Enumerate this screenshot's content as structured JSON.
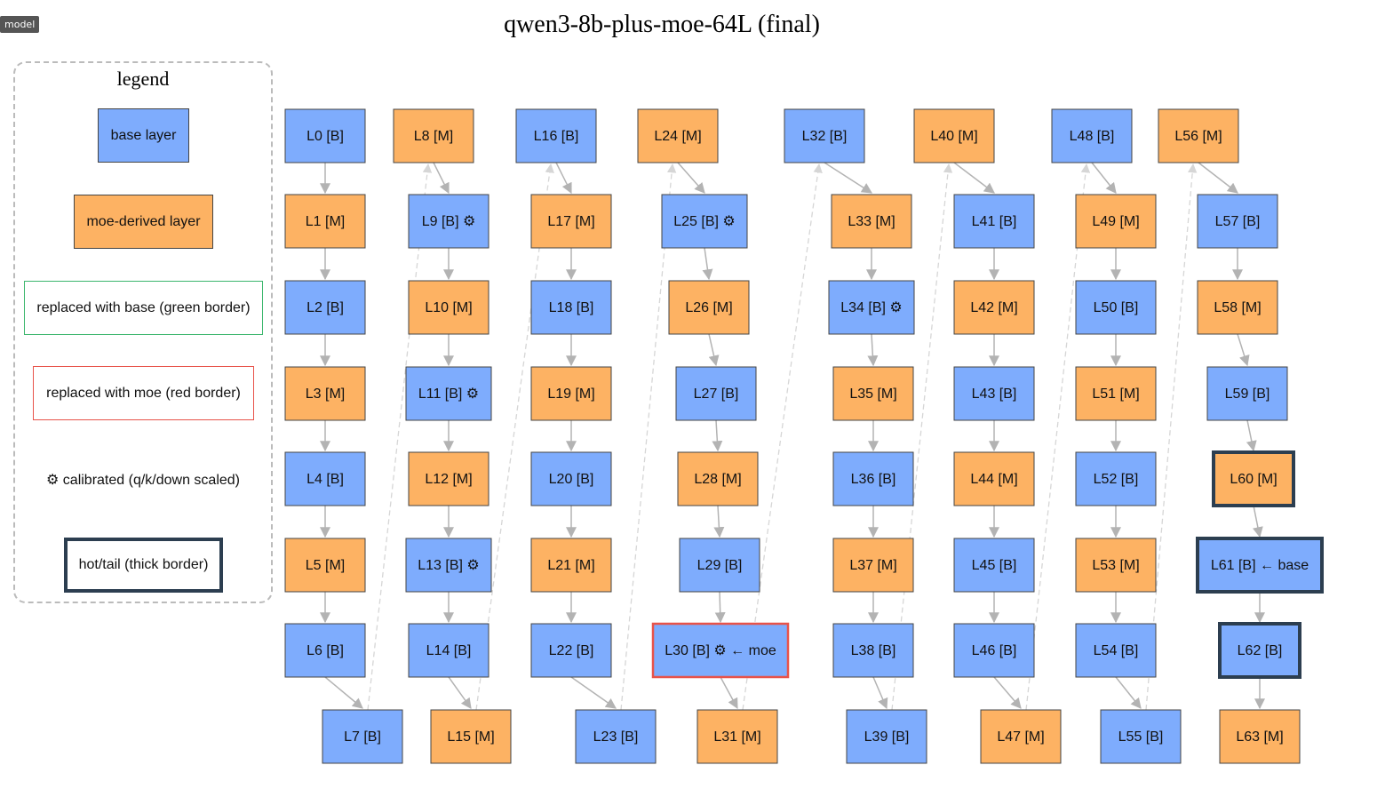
{
  "tag": "model",
  "title": "qwen3-8b-plus-moe-64L (final)",
  "legend": {
    "title": "legend",
    "items": [
      {
        "label": "base layer",
        "kind": "base"
      },
      {
        "label": "moe-derived layer",
        "kind": "moe"
      },
      {
        "label": "replaced with base (green border)",
        "kind": "green"
      },
      {
        "label": "replaced with moe (red border)",
        "kind": "red"
      },
      {
        "label": "⚙ calibrated (q/k/down scaled)",
        "kind": "calib"
      },
      {
        "label": "hot/tail (thick border)",
        "kind": "thick"
      }
    ]
  },
  "colors": {
    "base": "#7eacfd",
    "moe": "#fdb263",
    "node_border": "#444444",
    "green": "#3cb66d",
    "red": "#e8534a",
    "thick": "#2c3e50",
    "edge": "#b3b3b3",
    "edge_dashed": "#d6d6d6"
  },
  "layers": [
    {
      "id": 0,
      "label": "L0 [B]",
      "type": "base"
    },
    {
      "id": 1,
      "label": "L1 [M]",
      "type": "moe"
    },
    {
      "id": 2,
      "label": "L2 [B]",
      "type": "base"
    },
    {
      "id": 3,
      "label": "L3 [M]",
      "type": "moe"
    },
    {
      "id": 4,
      "label": "L4 [B]",
      "type": "base"
    },
    {
      "id": 5,
      "label": "L5 [M]",
      "type": "moe"
    },
    {
      "id": 6,
      "label": "L6 [B]",
      "type": "base"
    },
    {
      "id": 7,
      "label": "L7 [B]",
      "type": "base"
    },
    {
      "id": 8,
      "label": "L8 [M]",
      "type": "moe"
    },
    {
      "id": 9,
      "label": "L9 [B] ⚙",
      "type": "base",
      "calibrated": true
    },
    {
      "id": 10,
      "label": "L10 [M]",
      "type": "moe"
    },
    {
      "id": 11,
      "label": "L11 [B] ⚙",
      "type": "base",
      "calibrated": true
    },
    {
      "id": 12,
      "label": "L12 [M]",
      "type": "moe"
    },
    {
      "id": 13,
      "label": "L13 [B] ⚙",
      "type": "base",
      "calibrated": true
    },
    {
      "id": 14,
      "label": "L14 [B]",
      "type": "base"
    },
    {
      "id": 15,
      "label": "L15 [M]",
      "type": "moe"
    },
    {
      "id": 16,
      "label": "L16 [B]",
      "type": "base"
    },
    {
      "id": 17,
      "label": "L17 [M]",
      "type": "moe"
    },
    {
      "id": 18,
      "label": "L18 [B]",
      "type": "base"
    },
    {
      "id": 19,
      "label": "L19 [M]",
      "type": "moe"
    },
    {
      "id": 20,
      "label": "L20 [B]",
      "type": "base"
    },
    {
      "id": 21,
      "label": "L21 [M]",
      "type": "moe"
    },
    {
      "id": 22,
      "label": "L22 [B]",
      "type": "base"
    },
    {
      "id": 23,
      "label": "L23 [B]",
      "type": "base"
    },
    {
      "id": 24,
      "label": "L24 [M]",
      "type": "moe"
    },
    {
      "id": 25,
      "label": "L25 [B] ⚙",
      "type": "base",
      "calibrated": true
    },
    {
      "id": 26,
      "label": "L26 [M]",
      "type": "moe"
    },
    {
      "id": 27,
      "label": "L27 [B]",
      "type": "base"
    },
    {
      "id": 28,
      "label": "L28 [M]",
      "type": "moe"
    },
    {
      "id": 29,
      "label": "L29 [B]",
      "type": "base"
    },
    {
      "id": 30,
      "label": "L30 [B] ⚙ ← moe",
      "type": "base",
      "calibrated": true,
      "replaced": "moe"
    },
    {
      "id": 31,
      "label": "L31 [M]",
      "type": "moe"
    },
    {
      "id": 32,
      "label": "L32 [B]",
      "type": "base"
    },
    {
      "id": 33,
      "label": "L33 [M]",
      "type": "moe"
    },
    {
      "id": 34,
      "label": "L34 [B] ⚙",
      "type": "base",
      "calibrated": true
    },
    {
      "id": 35,
      "label": "L35 [M]",
      "type": "moe"
    },
    {
      "id": 36,
      "label": "L36 [B]",
      "type": "base"
    },
    {
      "id": 37,
      "label": "L37 [M]",
      "type": "moe"
    },
    {
      "id": 38,
      "label": "L38 [B]",
      "type": "base"
    },
    {
      "id": 39,
      "label": "L39 [B]",
      "type": "base"
    },
    {
      "id": 40,
      "label": "L40 [M]",
      "type": "moe"
    },
    {
      "id": 41,
      "label": "L41 [B]",
      "type": "base"
    },
    {
      "id": 42,
      "label": "L42 [M]",
      "type": "moe"
    },
    {
      "id": 43,
      "label": "L43 [B]",
      "type": "base"
    },
    {
      "id": 44,
      "label": "L44 [M]",
      "type": "moe"
    },
    {
      "id": 45,
      "label": "L45 [B]",
      "type": "base"
    },
    {
      "id": 46,
      "label": "L46 [B]",
      "type": "base"
    },
    {
      "id": 47,
      "label": "L47 [M]",
      "type": "moe"
    },
    {
      "id": 48,
      "label": "L48 [B]",
      "type": "base"
    },
    {
      "id": 49,
      "label": "L49 [M]",
      "type": "moe"
    },
    {
      "id": 50,
      "label": "L50 [B]",
      "type": "base"
    },
    {
      "id": 51,
      "label": "L51 [M]",
      "type": "moe"
    },
    {
      "id": 52,
      "label": "L52 [B]",
      "type": "base"
    },
    {
      "id": 53,
      "label": "L53 [M]",
      "type": "moe"
    },
    {
      "id": 54,
      "label": "L54 [B]",
      "type": "base"
    },
    {
      "id": 55,
      "label": "L55 [B]",
      "type": "base"
    },
    {
      "id": 56,
      "label": "L56 [M]",
      "type": "moe"
    },
    {
      "id": 57,
      "label": "L57 [B]",
      "type": "base"
    },
    {
      "id": 58,
      "label": "L58 [M]",
      "type": "moe"
    },
    {
      "id": 59,
      "label": "L59 [B]",
      "type": "base"
    },
    {
      "id": 60,
      "label": "L60 [M]",
      "type": "moe",
      "hot": true
    },
    {
      "id": 61,
      "label": "L61 [B] ← base",
      "type": "base",
      "hot": true,
      "replaced": "base"
    },
    {
      "id": 62,
      "label": "L62 [B]",
      "type": "base",
      "hot": true
    },
    {
      "id": 63,
      "label": "L63 [M]",
      "type": "moe"
    }
  ]
}
